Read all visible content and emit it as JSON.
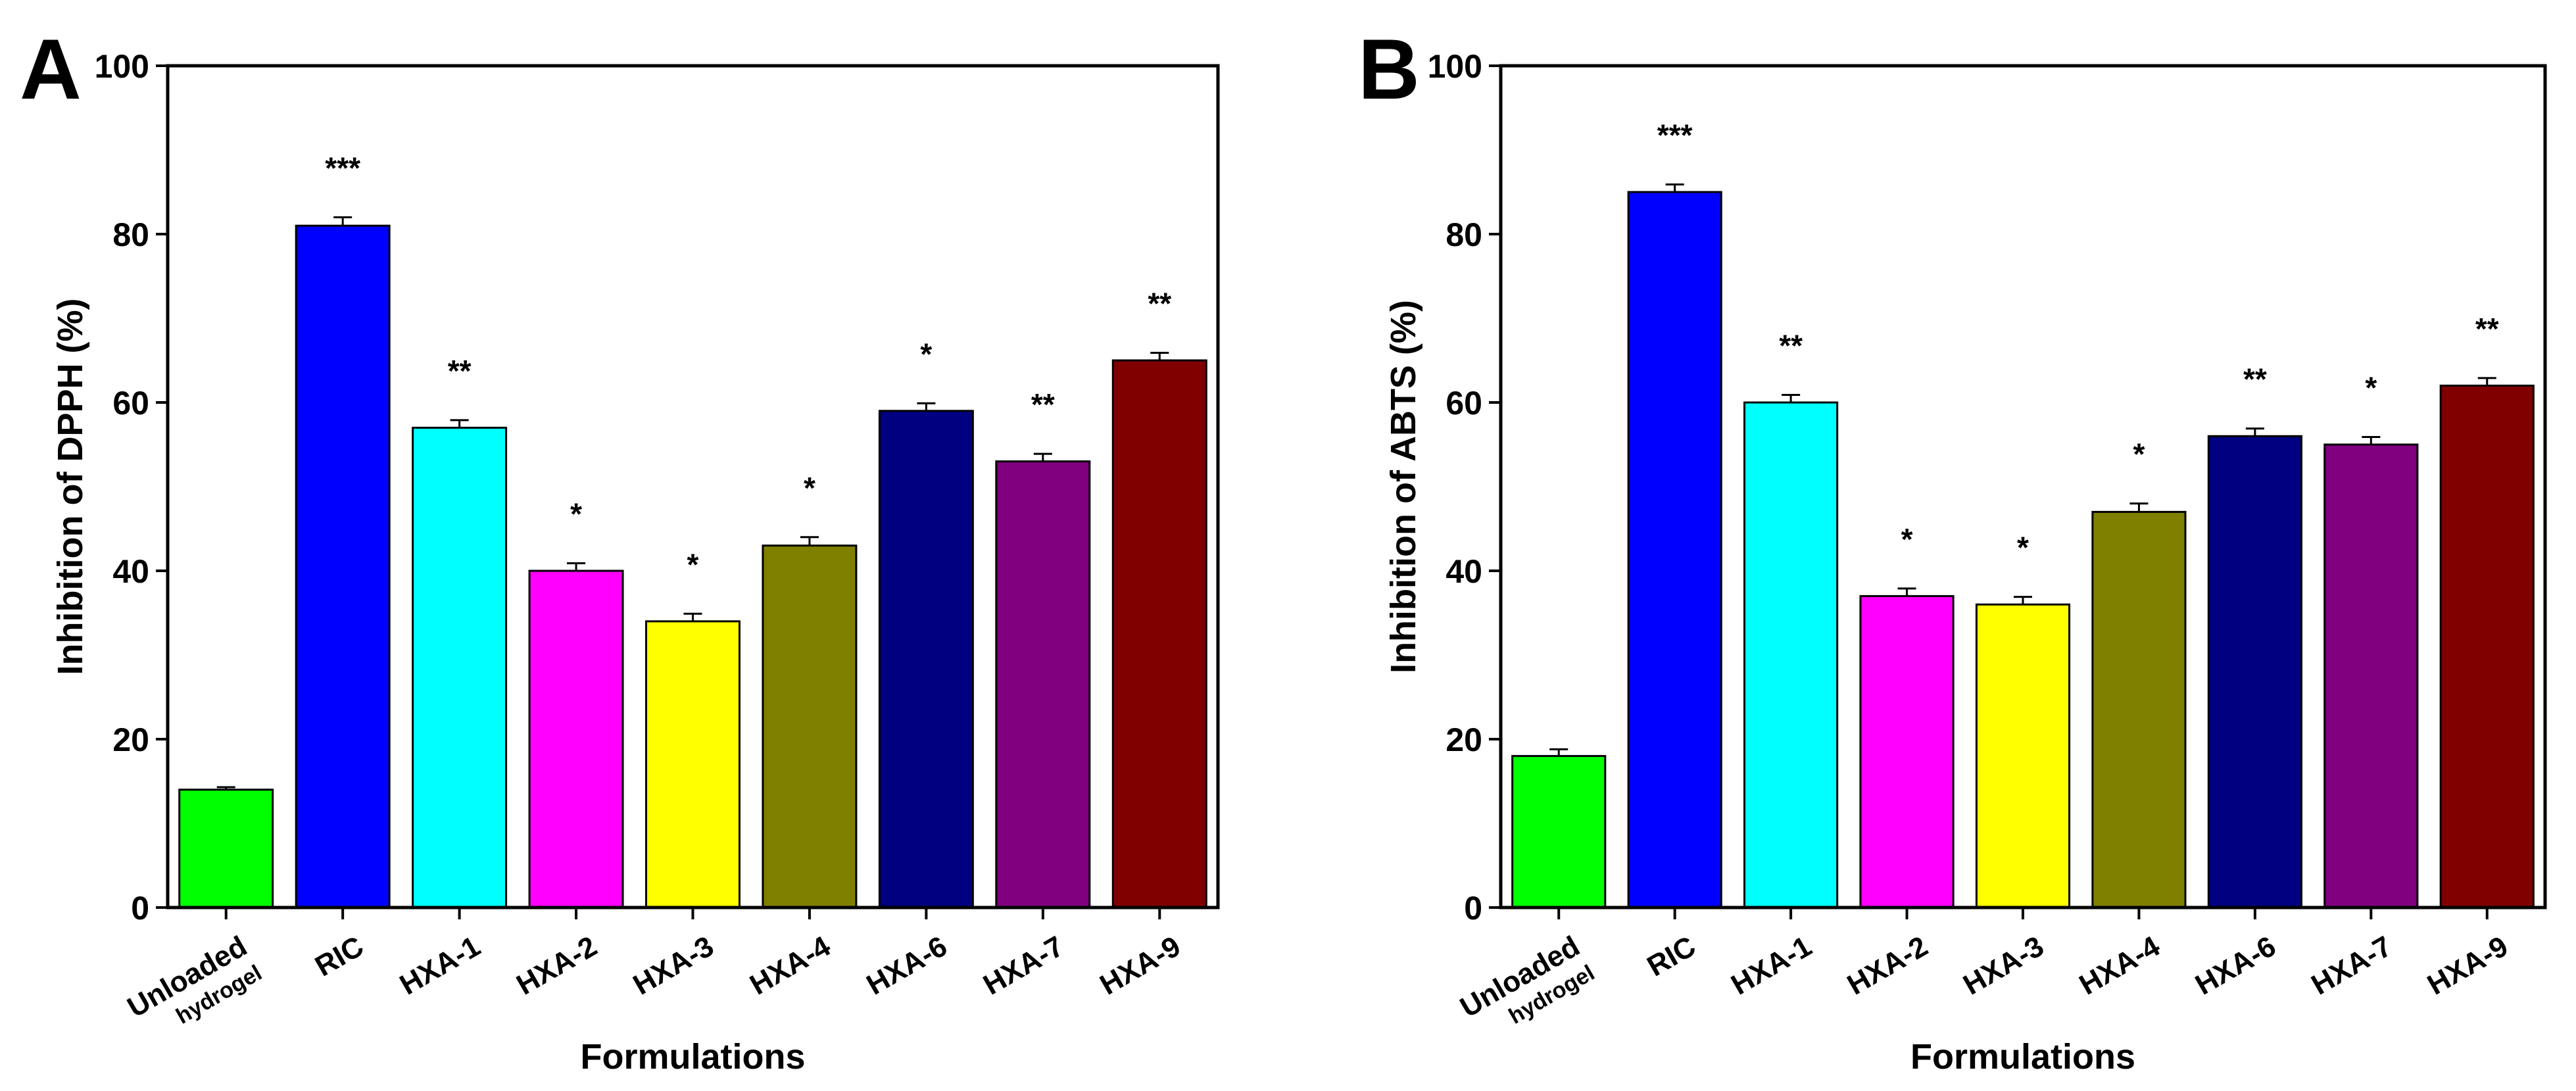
{
  "chart_data": [
    {
      "panel_label": "A",
      "type": "bar",
      "title": "",
      "xlabel": "Formulations",
      "ylabel": "Inhibition of DPPH (%)",
      "ylim": [
        0,
        100
      ],
      "yticks": [
        "0",
        "20",
        "40",
        "60",
        "80",
        "100"
      ],
      "categories": [
        "Unloaded hydrogel",
        "RIC",
        "HXA-1",
        "HXA-2",
        "HXA-3",
        "HXA-4",
        "HXA-6",
        "HXA-7",
        "HXA-9"
      ],
      "category_lines": [
        [
          "Unloaded",
          "hydrogel"
        ],
        [
          "RIC"
        ],
        [
          "HXA-1"
        ],
        [
          "HXA-2"
        ],
        [
          "HXA-3"
        ],
        [
          "HXA-4"
        ],
        [
          "HXA-6"
        ],
        [
          "HXA-7"
        ],
        [
          "HXA-9"
        ]
      ],
      "values": [
        14,
        81,
        57,
        40,
        34,
        43,
        59,
        53,
        65
      ],
      "errors": [
        0.3,
        1.0,
        0.9,
        0.9,
        0.9,
        1.0,
        0.9,
        0.9,
        0.9
      ],
      "significance": [
        "",
        "***",
        "**",
        "*",
        "*",
        "*",
        "*",
        "**",
        "**"
      ],
      "colors": [
        "#00ff00",
        "#0000ff",
        "#00ffff",
        "#ff00ff",
        "#ffff00",
        "#808000",
        "#000080",
        "#800080",
        "#800000"
      ]
    },
    {
      "panel_label": "B",
      "type": "bar",
      "title": "",
      "xlabel": "Formulations",
      "ylabel": "Inhibition of ABTS (%)",
      "ylim": [
        0,
        100
      ],
      "yticks": [
        "0",
        "20",
        "40",
        "60",
        "80",
        "100"
      ],
      "categories": [
        "Unloaded hydrogel",
        "RIC",
        "HXA-1",
        "HXA-2",
        "HXA-3",
        "HXA-4",
        "HXA-6",
        "HXA-7",
        "HXA-9"
      ],
      "category_lines": [
        [
          "Unloaded",
          "hydrogel"
        ],
        [
          "RIC"
        ],
        [
          "HXA-1"
        ],
        [
          "HXA-2"
        ],
        [
          "HXA-3"
        ],
        [
          "HXA-4"
        ],
        [
          "HXA-6"
        ],
        [
          "HXA-7"
        ],
        [
          "HXA-9"
        ]
      ],
      "values": [
        18,
        85,
        60,
        37,
        36,
        47,
        56,
        55,
        62
      ],
      "errors": [
        0.8,
        0.9,
        0.9,
        0.9,
        0.9,
        1.0,
        0.9,
        0.9,
        0.9
      ],
      "significance": [
        "",
        "***",
        "**",
        "*",
        "*",
        "*",
        "**",
        "*",
        "**"
      ],
      "colors": [
        "#00ff00",
        "#0000ff",
        "#00ffff",
        "#ff00ff",
        "#ffff00",
        "#808000",
        "#000080",
        "#800080",
        "#800000"
      ]
    }
  ]
}
